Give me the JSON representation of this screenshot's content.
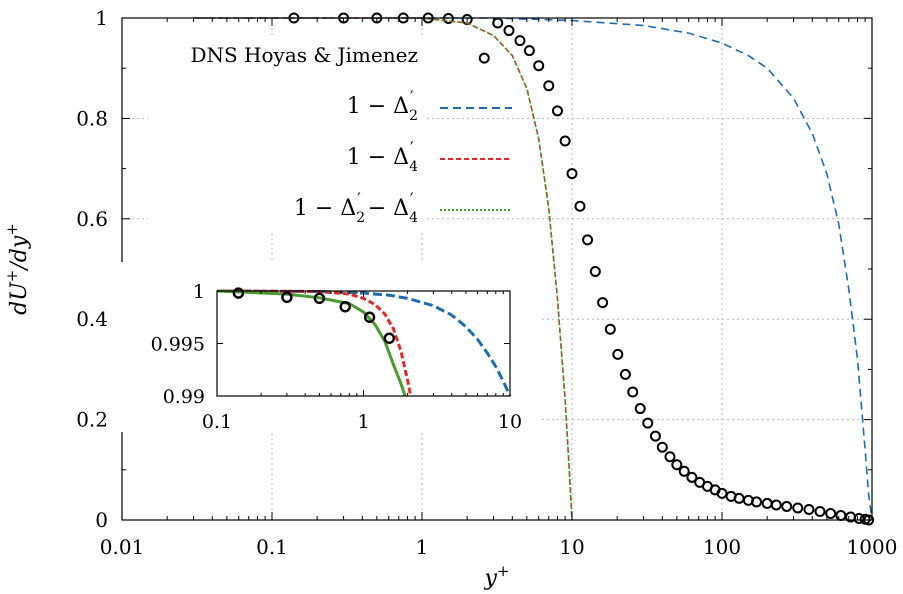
{
  "chart_data": {
    "type": "line",
    "xlabel": "y+",
    "ylabel": "dU+/dy+",
    "xscale": "log",
    "xlim": [
      0.01,
      1000
    ],
    "ylim": [
      0,
      1
    ],
    "grid": true,
    "legend_position": "top-right",
    "x_ticks": [
      "0.01",
      "0.1",
      "1",
      "10",
      "100",
      "1000"
    ],
    "y_ticks": [
      "0",
      "0.2",
      "0.4",
      "0.6",
      "0.8",
      "1"
    ],
    "legend": {
      "dns": "DNS Hoyas & Jimenez",
      "s1_prefix": "1 − Δ",
      "s1_sub": "2",
      "s1_sup": "′",
      "s2_prefix": "1 − Δ",
      "s2_sub": "4",
      "s2_sup": "′",
      "s3_prefix": "1 − Δ",
      "s3_sub1": "2",
      "s3_sup1": "′",
      "s3_mid": " − Δ",
      "s3_sub2": "4",
      "s3_sup2": "′"
    },
    "series": [
      {
        "name": "DNS Hoyas & Jimenez",
        "style": "markers",
        "color": "#000000",
        "x": [
          0.14,
          0.3,
          0.5,
          0.75,
          1.1,
          1.5,
          2.0,
          2.6,
          3.2,
          3.8,
          4.5,
          5.2,
          6.0,
          7.0,
          8.0,
          9.0,
          10.0,
          11.3,
          12.7,
          14.3,
          16.0,
          18.0,
          20.2,
          22.7,
          25.4,
          28.5,
          32.0,
          36.0,
          40.0,
          45.0,
          50.0,
          56.0,
          63.0,
          71.0,
          80.0,
          90.0,
          100.0,
          115.0,
          130.0,
          150.0,
          170.0,
          200.0,
          230.0,
          270.0,
          320.0,
          380.0,
          450.0,
          530.0,
          620.0,
          720.0,
          820.0,
          900.0,
          950.0
        ],
        "y": [
          1.0,
          1.0,
          1.0,
          1.0,
          1.0,
          0.999,
          0.997,
          0.92,
          0.99,
          0.975,
          0.955,
          0.935,
          0.905,
          0.865,
          0.815,
          0.755,
          0.69,
          0.625,
          0.558,
          0.495,
          0.433,
          0.38,
          0.33,
          0.29,
          0.255,
          0.222,
          0.193,
          0.167,
          0.145,
          0.126,
          0.11,
          0.097,
          0.085,
          0.075,
          0.067,
          0.06,
          0.053,
          0.047,
          0.043,
          0.039,
          0.036,
          0.033,
          0.03,
          0.027,
          0.024,
          0.021,
          0.017,
          0.013,
          0.009,
          0.006,
          0.003,
          0.0015,
          0.0
        ]
      },
      {
        "name": "1 − Δ2′",
        "style": "dashed",
        "color": "#1f6bb0",
        "x": [
          0.03,
          0.1,
          1,
          3,
          10,
          30,
          60,
          100,
          150,
          200,
          300,
          400,
          500,
          600,
          700,
          800,
          900,
          950,
          1000
        ],
        "y": [
          1.0,
          1.0,
          1.0,
          1.0,
          0.995,
          0.985,
          0.97,
          0.95,
          0.925,
          0.9,
          0.84,
          0.77,
          0.69,
          0.59,
          0.46,
          0.32,
          0.14,
          0.05,
          0.0
        ]
      },
      {
        "name": "1 − Δ4′",
        "style": "dashed",
        "color": "#e0272a",
        "x": [
          0.03,
          0.5,
          1,
          2,
          3,
          4,
          5,
          6,
          7,
          8,
          9,
          9.5,
          10
        ],
        "y": [
          1.0,
          1.0,
          1.0,
          0.99,
          0.965,
          0.925,
          0.86,
          0.76,
          0.62,
          0.44,
          0.24,
          0.12,
          0.0
        ]
      },
      {
        "name": "1 − Δ2′ − Δ4′",
        "style": "dashed",
        "color": "#4a9a30",
        "x": [
          0.03,
          0.5,
          1,
          2,
          3,
          4,
          5,
          6,
          7,
          8,
          9,
          9.5,
          10
        ],
        "y": [
          1.0,
          1.0,
          1.0,
          0.99,
          0.965,
          0.925,
          0.86,
          0.76,
          0.62,
          0.44,
          0.24,
          0.12,
          0.0
        ]
      }
    ],
    "inset": {
      "xscale": "log",
      "xlim": [
        0.1,
        10
      ],
      "ylim": [
        0.99,
        1.0
      ],
      "x_ticks": [
        "0.1",
        "1",
        "10"
      ],
      "y_ticks": [
        "0.99",
        "0.995",
        "1"
      ],
      "markers": {
        "x": [
          0.14,
          0.3,
          0.5,
          0.75,
          1.1,
          1.5
        ],
        "y": [
          0.9998,
          0.9994,
          0.9993,
          0.9985,
          0.9975,
          0.9955
        ]
      },
      "lines": [
        {
          "series": "1 − Δ2′",
          "x": [
            0.1,
            0.5,
            1,
            1.5,
            2,
            3,
            4,
            5,
            6,
            7,
            8,
            9,
            10
          ],
          "y": [
            1.0,
            0.99995,
            0.9998,
            0.9996,
            0.9993,
            0.9986,
            0.9977,
            0.9966,
            0.9954,
            0.9941,
            0.9928,
            0.9914,
            0.99
          ]
        },
        {
          "series": "1 − Δ4′",
          "x": [
            0.1,
            0.5,
            0.8,
            1,
            1.2,
            1.4,
            1.6,
            1.8,
            2.0,
            2.1
          ],
          "y": [
            1.0,
            0.99995,
            0.9997,
            0.9993,
            0.9987,
            0.9978,
            0.9964,
            0.9943,
            0.9915,
            0.99
          ]
        },
        {
          "series": "1 − Δ2′ − Δ4′",
          "x": [
            0.1,
            0.3,
            0.5,
            0.8,
            1,
            1.2,
            1.4,
            1.6,
            1.8,
            1.92
          ],
          "y": [
            1.0,
            0.9997,
            0.99935,
            0.9988,
            0.998,
            0.9968,
            0.9952,
            0.993,
            0.9912,
            0.99
          ]
        }
      ]
    }
  }
}
